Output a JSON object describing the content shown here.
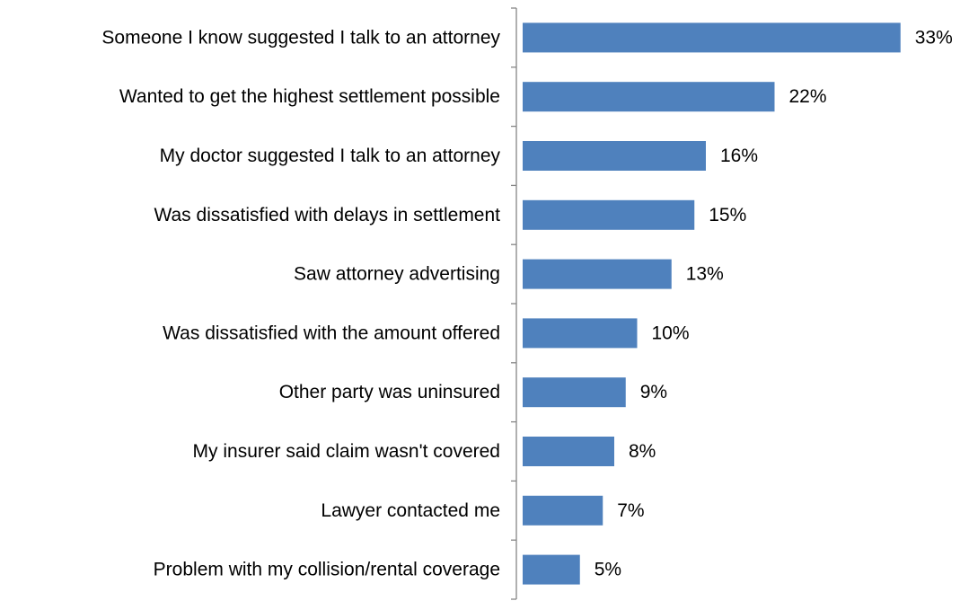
{
  "chart_data": {
    "type": "bar",
    "orientation": "horizontal",
    "categories": [
      "Someone I know suggested I talk to an attorney",
      "Wanted to get the highest settlement possible",
      "My doctor suggested I talk to an attorney",
      "Was dissatisfied with delays in settlement",
      "Saw attorney advertising",
      "Was dissatisfied with the amount offered",
      "Other party was uninsured",
      "My insurer said claim wasn't covered",
      "Lawyer contacted me",
      "Problem with my collision/rental coverage"
    ],
    "values": [
      33,
      22,
      16,
      15,
      13,
      10,
      9,
      8,
      7,
      5
    ],
    "value_labels": [
      "33%",
      "22%",
      "16%",
      "15%",
      "13%",
      "10%",
      "9%",
      "8%",
      "7%",
      "5%"
    ],
    "bar_color": "#4F81BD",
    "xlim": [
      0,
      35
    ],
    "grid": false,
    "legend": "none"
  }
}
